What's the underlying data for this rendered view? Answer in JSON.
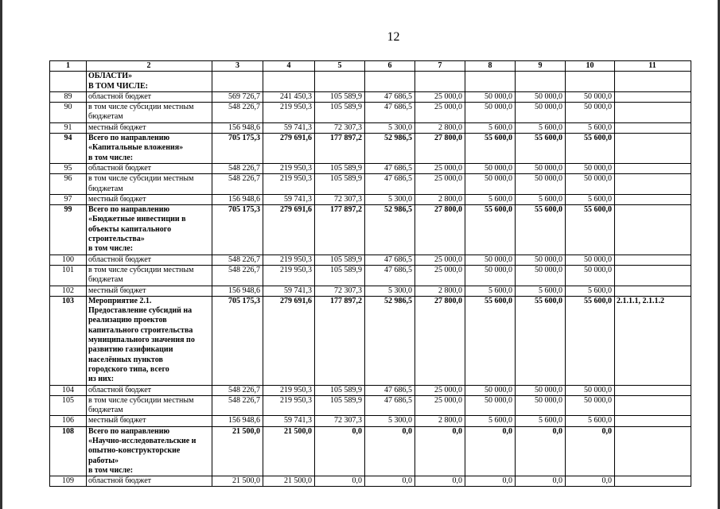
{
  "page_number": "12",
  "table": {
    "rows": [
      {
        "bold": true,
        "cells": [
          "1",
          "2",
          "3",
          "4",
          "5",
          "6",
          "7",
          "8",
          "9",
          "10",
          "11"
        ]
      },
      {
        "bold": true,
        "cells": [
          null,
          "ОБЛАСТИ»\nВ ТОМ ЧИСЛЕ:",
          null,
          null,
          null,
          null,
          null,
          null,
          null,
          null,
          null
        ]
      },
      {
        "bold": false,
        "cells": [
          "89",
          "областной бюджет",
          "569 726,7",
          "241 450,3",
          "105 589,9",
          "47 686,5",
          "25 000,0",
          "50 000,0",
          "50 000,0",
          "50 000,0",
          null
        ]
      },
      {
        "bold": false,
        "cells": [
          "90",
          "в том числе субсидии местным\nбюджетам",
          "548 226,7",
          "219 950,3",
          "105 589,9",
          "47 686,5",
          "25 000,0",
          "50 000,0",
          "50 000,0",
          "50 000,0",
          null
        ]
      },
      {
        "bold": false,
        "cells": [
          "91",
          "местный бюджет",
          "156 948,6",
          "59 741,3",
          "72 307,3",
          "5 300,0",
          "2 800,0",
          "5 600,0",
          "5 600,0",
          "5 600,0",
          null
        ]
      },
      {
        "bold": true,
        "cells": [
          "94",
          "Всего по направлению\n«Капитальные вложения»\nв том числе:",
          "705 175,3",
          "279 691,6",
          "177 897,2",
          "52 986,5",
          "27 800,0",
          "55 600,0",
          "55 600,0",
          "55 600,0",
          null
        ]
      },
      {
        "bold": false,
        "cells": [
          "95",
          "областной бюджет",
          "548 226,7",
          "219 950,3",
          "105 589,9",
          "47 686,5",
          "25 000,0",
          "50 000,0",
          "50 000,0",
          "50 000,0",
          null
        ]
      },
      {
        "bold": false,
        "cells": [
          "96",
          "в том числе субсидии местным\nбюджетам",
          "548 226,7",
          "219 950,3",
          "105 589,9",
          "47 686,5",
          "25 000,0",
          "50 000,0",
          "50 000,0",
          "50 000,0",
          null
        ]
      },
      {
        "bold": false,
        "cells": [
          "97",
          "местный бюджет",
          "156 948,6",
          "59 741,3",
          "72 307,3",
          "5 300,0",
          "2 800,0",
          "5 600,0",
          "5 600,0",
          "5 600,0",
          null
        ]
      },
      {
        "bold": true,
        "cells": [
          "99",
          "Всего по направлению\n«Бюджетные инвестиции в\nобъекты капитального\nстроительства»\nв том числе:",
          "705 175,3",
          "279 691,6",
          "177 897,2",
          "52 986,5",
          "27 800,0",
          "55 600,0",
          "55 600,0",
          "55 600,0",
          null
        ]
      },
      {
        "bold": false,
        "cells": [
          "100",
          "областной бюджет",
          "548 226,7",
          "219 950,3",
          "105 589,9",
          "47 686,5",
          "25 000,0",
          "50 000,0",
          "50 000,0",
          "50 000,0",
          null
        ]
      },
      {
        "bold": false,
        "cells": [
          "101",
          "в том числе субсидии местным\nбюджетам",
          "548 226,7",
          "219 950,3",
          "105 589,9",
          "47 686,5",
          "25 000,0",
          "50 000,0",
          "50 000,0",
          "50 000,0",
          null
        ]
      },
      {
        "bold": false,
        "cells": [
          "102",
          "местный бюджет",
          "156 948,6",
          "59 741,3",
          "72 307,3",
          "5 300,0",
          "2 800,0",
          "5 600,0",
          "5 600,0",
          "5 600,0",
          null
        ]
      },
      {
        "bold": true,
        "cells": [
          "103",
          "Мероприятие 2.1.\nПредоставление субсидий на\nреализацию проектов\nкапитального строительства\nмуниципального значения по\nразвитию газификации\nнаселённых пунктов\nгородского типа, всего\nиз них:",
          "705 175,3",
          "279 691,6",
          "177 897,2",
          "52 986,5",
          "27 800,0",
          "55 600,0",
          "55 600,0",
          "55 600,0",
          "2.1.1.1, 2.1.1.2"
        ]
      },
      {
        "bold": false,
        "cells": [
          "104",
          "областной бюджет",
          "548 226,7",
          "219 950,3",
          "105 589,9",
          "47 686,5",
          "25 000,0",
          "50 000,0",
          "50 000,0",
          "50 000,0",
          null
        ]
      },
      {
        "bold": false,
        "cells": [
          "105",
          "в том числе субсидии местным\nбюджетам",
          "548 226,7",
          "219 950,3",
          "105 589,9",
          "47 686,5",
          "25 000,0",
          "50 000,0",
          "50 000,0",
          "50 000,0",
          null
        ]
      },
      {
        "bold": false,
        "cells": [
          "106",
          "местный бюджет",
          "156 948,6",
          "59 741,3",
          "72 307,3",
          "5 300,0",
          "2 800,0",
          "5 600,0",
          "5 600,0",
          "5 600,0",
          null
        ]
      },
      {
        "bold": true,
        "cells": [
          "108",
          "Всего по направлению\n«Научно-исследовательские и\nопытно-конструкторские\nработы»\nв том числе:",
          "21 500,0",
          "21 500,0",
          "0,0",
          "0,0",
          "0,0",
          "0,0",
          "0,0",
          "0,0",
          null
        ]
      },
      {
        "bold": false,
        "cells": [
          "109",
          "областной бюджет",
          "21 500,0",
          "21 500,0",
          "0,0",
          "0,0",
          "0,0",
          "0,0",
          "0,0",
          "0,0",
          null
        ]
      }
    ]
  }
}
